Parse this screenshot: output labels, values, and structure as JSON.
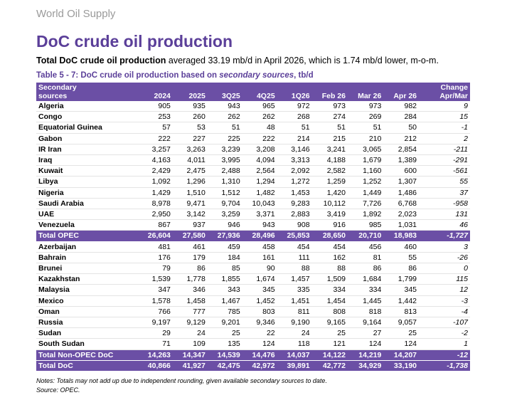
{
  "header": {
    "section": "World Oil Supply",
    "title": "DoC crude oil production",
    "summary_bold": "Total DoC crude oil production",
    "summary_rest": " averaged 33.19 mb/d in April 2026, which is 1.74 mb/d lower, m-o-m."
  },
  "table": {
    "caption_start": "Table 5 - 7: DoC crude oil production based on ",
    "caption_italic": "secondary sources",
    "caption_end": ", tb/d",
    "columns": [
      "Secondary sources",
      "2024",
      "2025",
      "3Q25",
      "4Q25",
      "1Q26",
      "Feb 26",
      "Mar 26",
      "Apr 26",
      "Change Apr/Mar"
    ],
    "groups": [
      {
        "rows": [
          [
            "Algeria",
            "905",
            "935",
            "943",
            "965",
            "972",
            "973",
            "973",
            "982",
            "9"
          ],
          [
            "Congo",
            "253",
            "260",
            "262",
            "262",
            "268",
            "274",
            "269",
            "284",
            "15"
          ],
          [
            "Equatorial Guinea",
            "57",
            "53",
            "51",
            "48",
            "51",
            "51",
            "51",
            "50",
            "-1"
          ],
          [
            "Gabon",
            "222",
            "227",
            "225",
            "222",
            "214",
            "215",
            "210",
            "212",
            "2"
          ],
          [
            "IR Iran",
            "3,257",
            "3,263",
            "3,239",
            "3,208",
            "3,146",
            "3,241",
            "3,065",
            "2,854",
            "-211"
          ],
          [
            "Iraq",
            "4,163",
            "4,011",
            "3,995",
            "4,094",
            "3,313",
            "4,188",
            "1,679",
            "1,389",
            "-291"
          ],
          [
            "Kuwait",
            "2,429",
            "2,475",
            "2,488",
            "2,564",
            "2,092",
            "2,582",
            "1,160",
            "600",
            "-561"
          ],
          [
            "Libya",
            "1,092",
            "1,296",
            "1,310",
            "1,294",
            "1,272",
            "1,259",
            "1,252",
            "1,307",
            "55"
          ],
          [
            "Nigeria",
            "1,429",
            "1,510",
            "1,512",
            "1,482",
            "1,453",
            "1,420",
            "1,449",
            "1,486",
            "37"
          ],
          [
            "Saudi Arabia",
            "8,978",
            "9,471",
            "9,704",
            "10,043",
            "9,283",
            "10,112",
            "7,726",
            "6,768",
            "-958"
          ],
          [
            "UAE",
            "2,950",
            "3,142",
            "3,259",
            "3,371",
            "2,883",
            "3,419",
            "1,892",
            "2,023",
            "131"
          ],
          [
            "Venezuela",
            "867",
            "937",
            "946",
            "943",
            "908",
            "916",
            "985",
            "1,031",
            "46"
          ]
        ],
        "total": [
          "Total  OPEC",
          "26,604",
          "27,580",
          "27,936",
          "28,496",
          "25,853",
          "28,650",
          "20,710",
          "18,983",
          "-1,727"
        ]
      },
      {
        "rows": [
          [
            "Azerbaijan",
            "481",
            "461",
            "459",
            "458",
            "454",
            "454",
            "456",
            "460",
            "3"
          ],
          [
            "Bahrain",
            "176",
            "179",
            "184",
            "161",
            "111",
            "162",
            "81",
            "55",
            "-26"
          ],
          [
            "Brunei",
            "79",
            "86",
            "85",
            "90",
            "88",
            "88",
            "86",
            "86",
            "0"
          ],
          [
            "Kazakhstan",
            "1,539",
            "1,778",
            "1,855",
            "1,674",
            "1,457",
            "1,509",
            "1,684",
            "1,799",
            "115"
          ],
          [
            "Malaysia",
            "347",
            "346",
            "343",
            "345",
            "335",
            "334",
            "334",
            "345",
            "12"
          ],
          [
            "Mexico",
            "1,578",
            "1,458",
            "1,467",
            "1,452",
            "1,451",
            "1,454",
            "1,445",
            "1,442",
            "-3"
          ],
          [
            "Oman",
            "766",
            "777",
            "785",
            "803",
            "811",
            "808",
            "818",
            "813",
            "-4"
          ],
          [
            "Russia",
            "9,197",
            "9,129",
            "9,201",
            "9,346",
            "9,190",
            "9,165",
            "9,164",
            "9,057",
            "-107"
          ],
          [
            "Sudan",
            "29",
            "24",
            "25",
            "22",
            "24",
            "25",
            "27",
            "25",
            "-2"
          ],
          [
            "South Sudan",
            "71",
            "109",
            "135",
            "124",
            "118",
            "121",
            "124",
            "124",
            "1"
          ]
        ],
        "total": [
          "Total Non-OPEC DoC",
          "14,263",
          "14,347",
          "14,539",
          "14,476",
          "14,037",
          "14,122",
          "14,219",
          "14,207",
          "-12"
        ]
      }
    ],
    "grand_total": [
      "Total DoC",
      "40,866",
      "41,927",
      "42,475",
      "42,972",
      "39,891",
      "42,772",
      "34,929",
      "33,190",
      "-1,738"
    ]
  },
  "footer": {
    "notes": "Notes: Totals may not add up due to independent rounding, given available secondary sources to date.",
    "source": "Source: OPEC."
  }
}
